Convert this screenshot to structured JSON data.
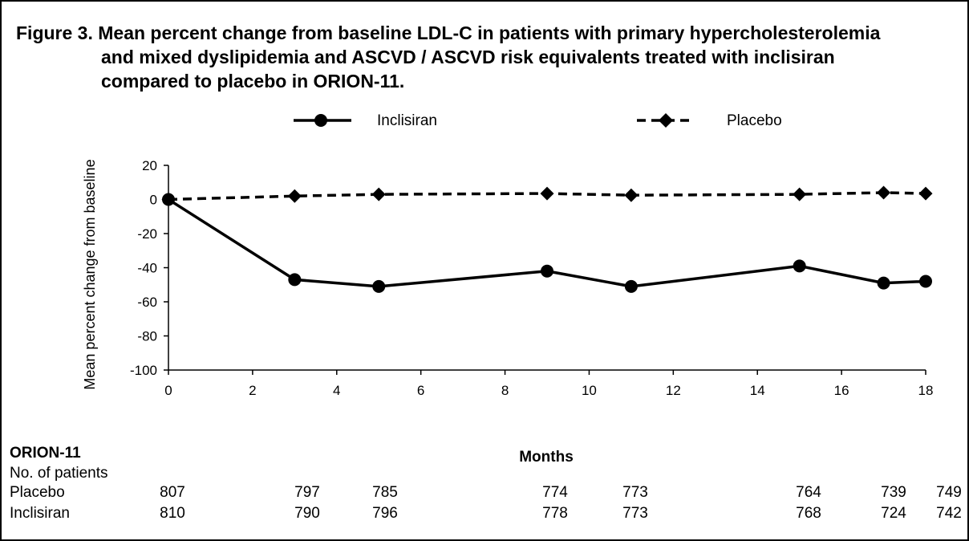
{
  "figure": {
    "title_lines": [
      "Figure 3. Mean percent change from baseline LDL-C in patients with primary hypercholesterolemia",
      "and mixed dyslipidemia and ASCVD / ASCVD risk equivalents treated with inclisiran",
      "compared to placebo in ORION-11."
    ]
  },
  "chart_data": {
    "type": "line",
    "xlabel": "Months",
    "ylabel": "Mean percent change from baseline",
    "xlim": [
      0,
      18
    ],
    "ylim": [
      -100,
      20
    ],
    "xticks": [
      0,
      2,
      4,
      6,
      8,
      10,
      12,
      14,
      16,
      18
    ],
    "yticks": [
      20,
      0,
      -20,
      -40,
      -60,
      -80,
      -100
    ],
    "grid": false,
    "legend_position": "top",
    "series": [
      {
        "name": "Inclisiran",
        "marker": "circle",
        "line_style": "solid",
        "color": "#000000",
        "x": [
          0,
          3,
          5,
          9,
          11,
          15,
          17,
          18
        ],
        "y": [
          0,
          -47,
          -51,
          -42,
          -51,
          -39,
          -49,
          -48
        ]
      },
      {
        "name": "Placebo",
        "marker": "diamond",
        "line_style": "dashed",
        "color": "#000000",
        "x": [
          0,
          3,
          5,
          9,
          11,
          15,
          17,
          18
        ],
        "y": [
          0,
          2,
          3,
          3.5,
          2.5,
          3,
          4,
          3.5
        ]
      }
    ]
  },
  "patients_table": {
    "study_label": "ORION-11",
    "header": "No. of patients",
    "rows": [
      {
        "label": "Placebo",
        "counts": [
          "807",
          "797",
          "785",
          "774",
          "773",
          "764",
          "739",
          "749"
        ]
      },
      {
        "label": "Inclisiran",
        "counts": [
          "810",
          "790",
          "796",
          "778",
          "773",
          "768",
          "724",
          "742"
        ]
      }
    ]
  }
}
